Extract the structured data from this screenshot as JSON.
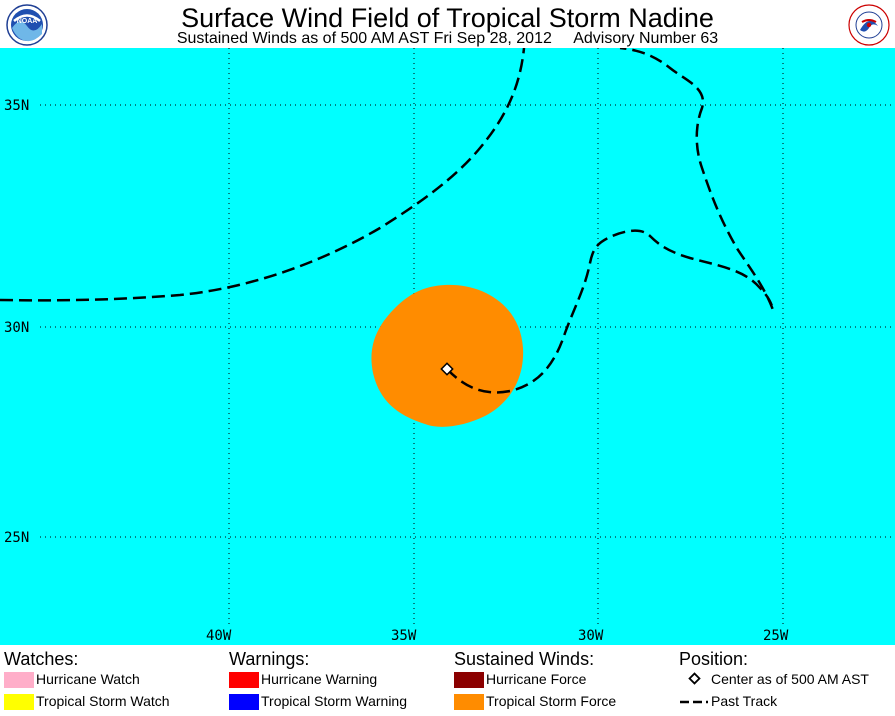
{
  "header": {
    "title": "Surface Wind Field of Tropical Storm Nadine",
    "subtitle": "Sustained Winds as of 500 AM AST Fri Sep 28, 2012     Advisory Number 63",
    "left_logo": "noaa-logo",
    "right_logo": "national-weather-service-logo",
    "right_logo_text": "NATIONAL WEATHER SERVICE"
  },
  "map": {
    "ocean_color": "#00ffff",
    "lat_labels": [
      "35N",
      "30N",
      "25N"
    ],
    "lon_labels": [
      "40W",
      "35W",
      "30W",
      "25W"
    ],
    "wind_field_color": "#ff8c00",
    "track_style": "dashed"
  },
  "legend": {
    "watches": {
      "title": "Watches:",
      "items": [
        {
          "label": "Hurricane Watch",
          "color": "#ffaec9"
        },
        {
          "label": "Tropical Storm Watch",
          "color": "#ffff00"
        }
      ]
    },
    "warnings": {
      "title": "Warnings:",
      "items": [
        {
          "label": "Hurricane Warning",
          "color": "#ff0000"
        },
        {
          "label": "Tropical Storm Warning",
          "color": "#0000ff"
        }
      ]
    },
    "winds": {
      "title": "Sustained Winds:",
      "items": [
        {
          "label": "Hurricane Force",
          "color": "#8b0000"
        },
        {
          "label": "Tropical Storm Force",
          "color": "#ff8c00"
        }
      ]
    },
    "position": {
      "title": "Position:",
      "center_label": "Center as of 500 AM AST",
      "track_label": "Past Track",
      "center_icon": "diamond-icon",
      "track_icon": "dashed-line-icon"
    }
  }
}
